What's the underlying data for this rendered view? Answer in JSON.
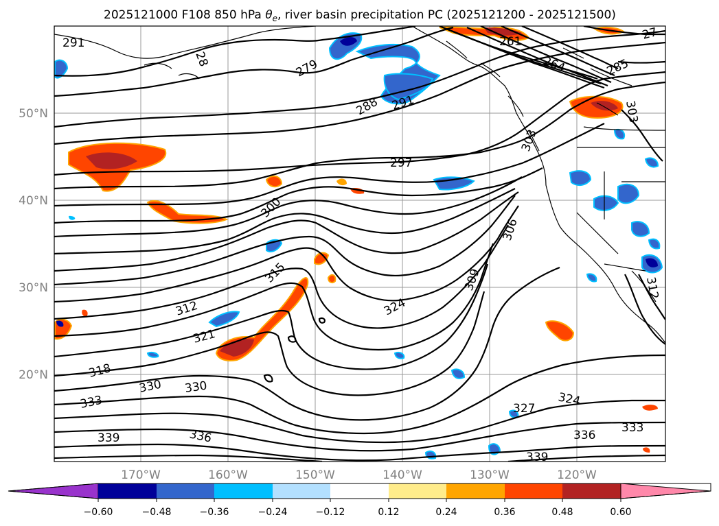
{
  "title": "2025121000 F108 850 hPa θe, river basin precipitation PC (2025121200 - 2025121500)",
  "title_parts": {
    "prefix": "2025121000 F108 850 hPa ",
    "theta": "θ",
    "theta_sub": "e",
    "suffix": ", river basin precipitation PC (2025121200 - 2025121500)"
  },
  "lat_labels": [
    "50°N",
    "40°N",
    "30°N",
    "20°N"
  ],
  "lon_labels": [
    "170°W",
    "160°W",
    "150°W",
    "140°W",
    "130°W",
    "120°W"
  ],
  "colorbar": {
    "tick_labels": [
      "−0.60",
      "−0.48",
      "−0.36",
      "−0.24",
      "−0.12",
      "0.12",
      "0.24",
      "0.36",
      "0.48",
      "0.60"
    ],
    "colors": [
      "#9933cc",
      "#000099",
      "#3366cc",
      "#00bfff",
      "#b3e0ff",
      "#ffffff",
      "#ffec8b",
      "#ffa500",
      "#ff4500",
      "#b22222",
      "#ff88aa"
    ]
  },
  "contour_labels": [
    {
      "text": "291"
    },
    {
      "text": "28"
    },
    {
      "text": "279"
    },
    {
      "text": "288"
    },
    {
      "text": "291"
    },
    {
      "text": "261"
    },
    {
      "text": "264"
    },
    {
      "text": "285"
    },
    {
      "text": "27"
    },
    {
      "text": "303"
    },
    {
      "text": "303"
    },
    {
      "text": "297"
    },
    {
      "text": "300"
    },
    {
      "text": "306"
    },
    {
      "text": "315"
    },
    {
      "text": "309"
    },
    {
      "text": "312"
    },
    {
      "text": "324"
    },
    {
      "text": "321"
    },
    {
      "text": "318"
    },
    {
      "text": "330"
    },
    {
      "text": "330"
    },
    {
      "text": "333"
    },
    {
      "text": "327"
    },
    {
      "text": "324"
    },
    {
      "text": "339"
    },
    {
      "text": "336"
    },
    {
      "text": "336"
    },
    {
      "text": "333"
    },
    {
      "text": "339"
    },
    {
      "text": "312"
    }
  ]
}
